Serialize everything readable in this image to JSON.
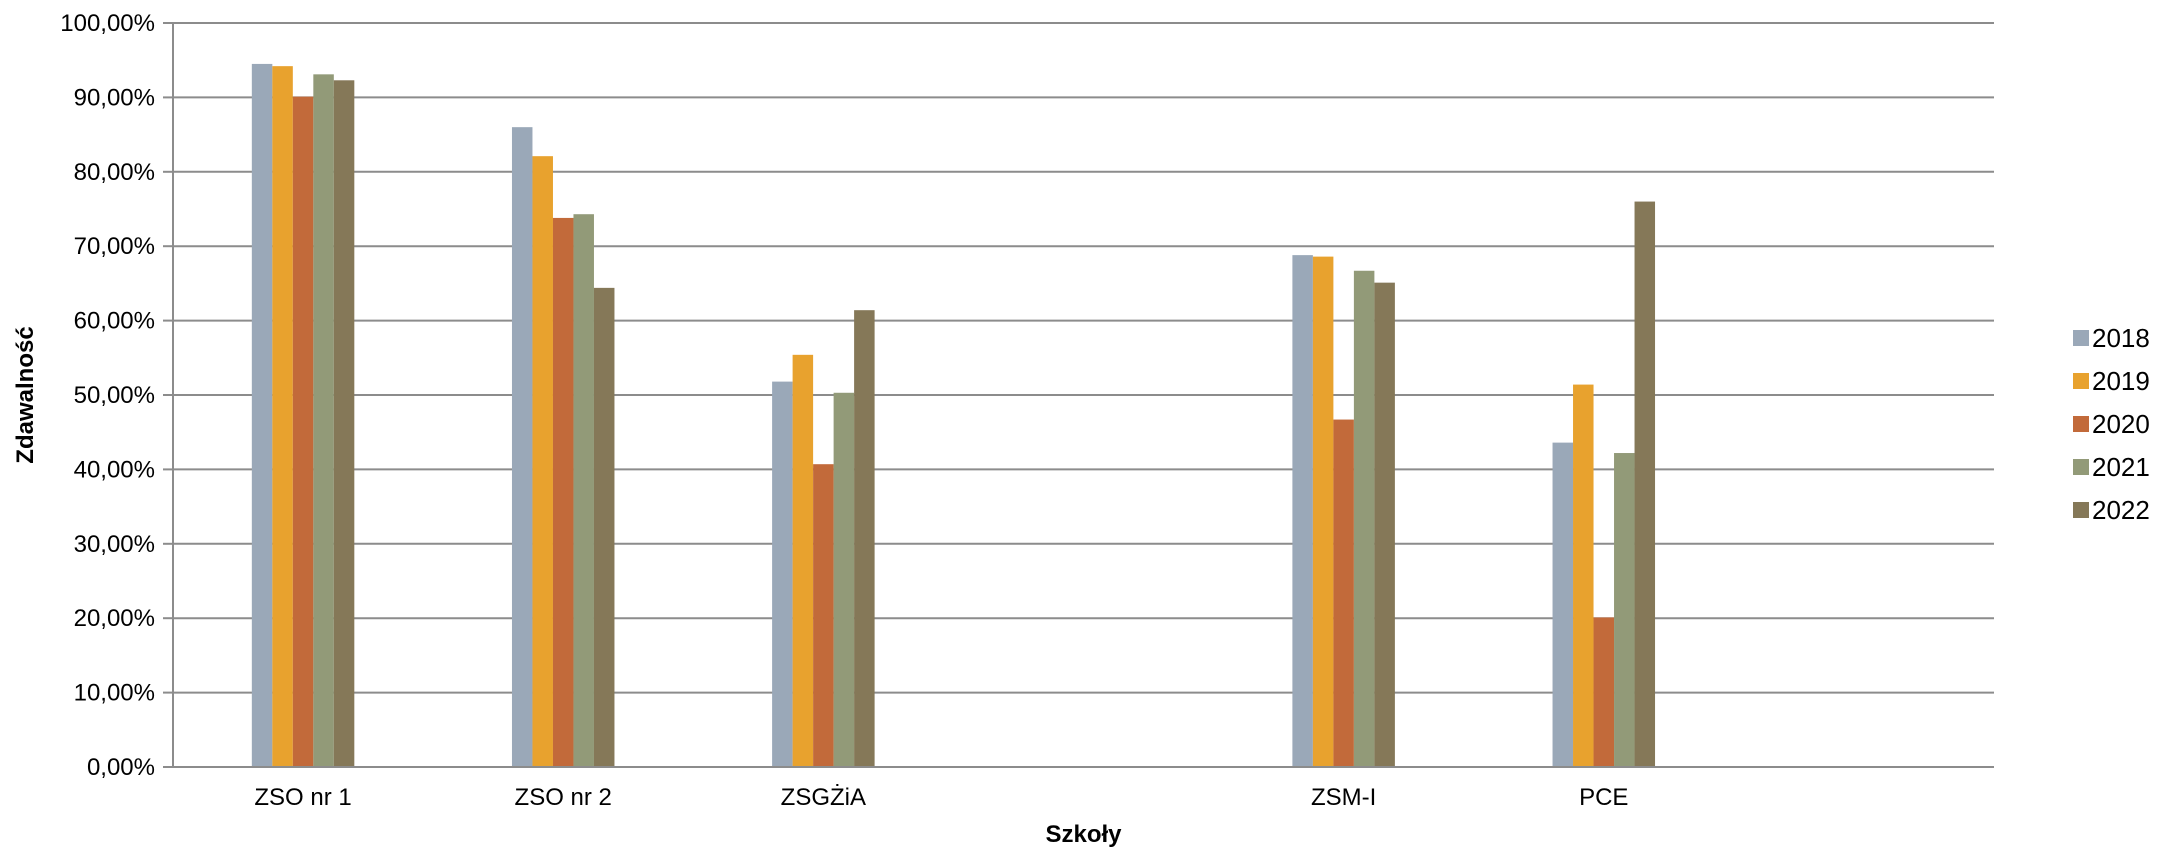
{
  "chart_data": {
    "type": "bar",
    "title": "",
    "xlabel": "Szkoły",
    "ylabel": "Zdawalność",
    "categories": [
      "ZSO nr 1",
      "ZSO nr 2",
      "ZSGŻiA",
      "",
      "ZSM-I",
      "PCE",
      ""
    ],
    "series": [
      {
        "name": "2018",
        "color": "#9aa8b8",
        "values": [
          94.5,
          86.0,
          51.8,
          null,
          68.8,
          43.6,
          null
        ]
      },
      {
        "name": "2019",
        "color": "#e8a22e",
        "values": [
          94.2,
          82.1,
          55.4,
          null,
          68.6,
          51.4,
          null
        ]
      },
      {
        "name": "2020",
        "color": "#c26a3a",
        "values": [
          90.1,
          73.8,
          40.7,
          null,
          46.7,
          20.1,
          null
        ]
      },
      {
        "name": "2021",
        "color": "#929a78",
        "values": [
          93.1,
          74.3,
          50.3,
          null,
          66.7,
          42.2,
          null
        ]
      },
      {
        "name": "2022",
        "color": "#857858",
        "values": [
          92.3,
          64.4,
          61.4,
          null,
          65.1,
          76.0,
          null
        ]
      }
    ],
    "ylim": [
      0,
      100
    ],
    "yticks": [
      "0,00%",
      "10,00%",
      "20,00%",
      "30,00%",
      "40,00%",
      "50,00%",
      "60,00%",
      "70,00%",
      "80,00%",
      "90,00%",
      "100,00%"
    ],
    "grid": true,
    "legend": "right"
  }
}
